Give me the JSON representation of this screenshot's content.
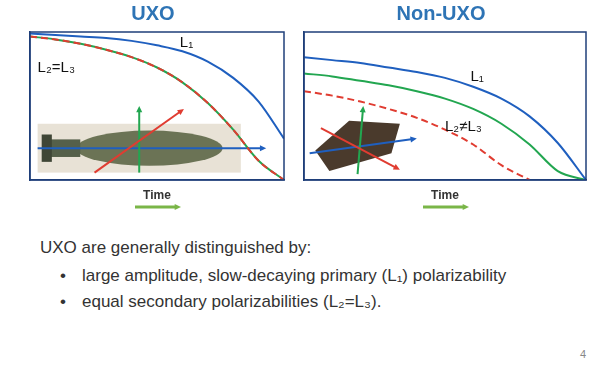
{
  "chart_data": [
    {
      "type": "line",
      "title": "UXO",
      "x_label": "Time",
      "xlim": [
        0,
        10
      ],
      "ylim": [
        0,
        10
      ],
      "tick_labels": false,
      "grid": false,
      "x": [
        0,
        1,
        2,
        3,
        4,
        5,
        6,
        7,
        8,
        9,
        10
      ],
      "series": [
        {
          "color": "#1f5fbf",
          "line_style": "solid",
          "values": [
            9.9,
            9.8,
            9.7,
            9.6,
            9.4,
            9.1,
            8.7,
            8.0,
            6.9,
            5.3,
            2.8
          ]
        },
        {
          "color": "#22a650",
          "line_style": "solid",
          "values": [
            9.7,
            9.5,
            9.2,
            8.8,
            8.3,
            7.6,
            6.6,
            5.2,
            3.4,
            1.3,
            0
          ]
        },
        {
          "color": "#e03c31",
          "line_style": "dashed",
          "values": [
            9.7,
            9.5,
            9.2,
            8.8,
            8.3,
            7.6,
            6.6,
            5.2,
            3.4,
            1.3,
            0
          ]
        }
      ],
      "annotations": [
        {
          "text": "L₁",
          "x": 5.9,
          "y": 9.3
        },
        {
          "text": "L₂=L₃",
          "x": 0.3,
          "y": 7.6
        }
      ]
    },
    {
      "type": "line",
      "title": "Non-UXO",
      "x_label": "Time",
      "xlim": [
        0,
        10
      ],
      "ylim": [
        0,
        10
      ],
      "tick_labels": false,
      "grid": false,
      "x": [
        0,
        1,
        2,
        3,
        4,
        5,
        6,
        7,
        8,
        9,
        10
      ],
      "series": [
        {
          "color": "#1f5fbf",
          "line_style": "solid",
          "values": [
            8.3,
            8.1,
            7.9,
            7.6,
            7.3,
            6.9,
            6.3,
            5.5,
            4.3,
            2.5,
            0
          ]
        },
        {
          "color": "#22a650",
          "line_style": "solid",
          "values": [
            7.2,
            7.0,
            6.7,
            6.4,
            6.0,
            5.5,
            4.8,
            3.8,
            2.4,
            0.6,
            0
          ]
        },
        {
          "color": "#e03c31",
          "line_style": "dashed",
          "values": [
            6.0,
            5.7,
            5.3,
            4.8,
            4.2,
            3.4,
            2.4,
            1.0,
            0,
            null,
            null
          ]
        }
      ],
      "annotations": [
        {
          "text": "L₁",
          "x": 5.9,
          "y": 7.0
        },
        {
          "text": "L₂≠L₃",
          "x": 5.0,
          "y": 3.6
        }
      ]
    }
  ],
  "slide": {
    "heading": "UXO are generally distinguished by:",
    "bullets": [
      "large amplitude, slow-decaying primary (L₁) polarizability",
      "equal secondary polarizabilities (L₂=L₃)."
    ],
    "page_number": 4
  }
}
